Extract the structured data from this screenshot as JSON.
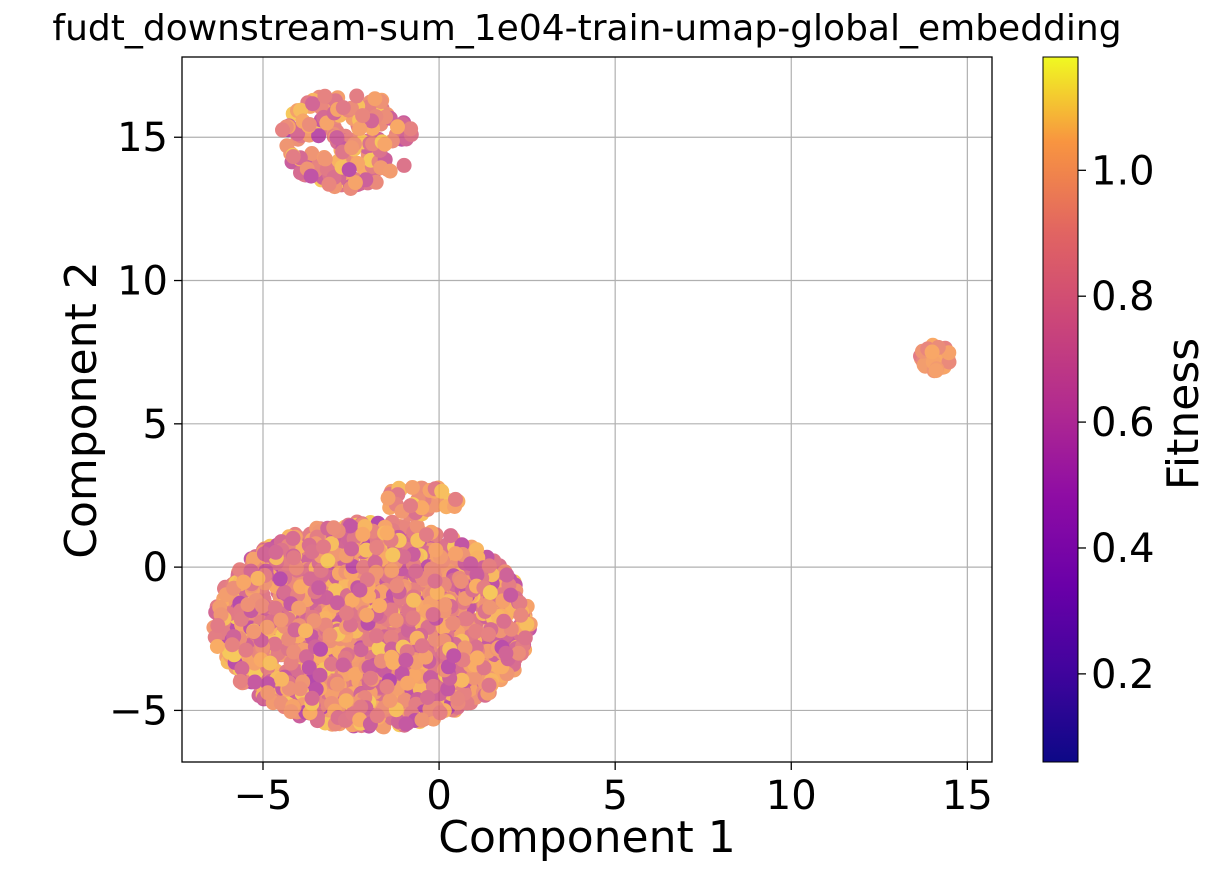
{
  "chart_data": {
    "type": "scatter",
    "title": "fudt_downstream-sum_1e04-train-umap-global_embedding",
    "xlabel": "Component 1",
    "ylabel": "Component 2",
    "xlim": [
      -7.3,
      15.7
    ],
    "ylim": [
      -6.8,
      17.8
    ],
    "xticks": [
      -5,
      0,
      5,
      10,
      15
    ],
    "yticks": [
      -5,
      0,
      5,
      10,
      15
    ],
    "grid": true,
    "colormap": "plasma",
    "colorbar": {
      "label": "Fitness",
      "range": [
        0.06,
        1.18
      ],
      "ticks": [
        0.2,
        0.4,
        0.6,
        0.8,
        1.0
      ]
    },
    "clusters": [
      {
        "name": "upper-left cluster",
        "center": [
          -2.6,
          14.9
        ],
        "extent": [
          1.9,
          1.7
        ],
        "fitness_range": [
          0.55,
          1.1
        ],
        "approx_points": 180
      },
      {
        "name": "main cluster",
        "center": [
          -1.9,
          -2.0
        ],
        "extent": [
          4.5,
          3.6
        ],
        "fitness_range": [
          0.55,
          1.1
        ],
        "approx_points": 2200
      },
      {
        "name": "small bump",
        "center": [
          -0.5,
          2.3
        ],
        "extent": [
          1.1,
          0.6
        ],
        "fitness_range": [
          0.8,
          1.1
        ],
        "approx_points": 40
      },
      {
        "name": "right cluster",
        "center": [
          14.1,
          7.3
        ],
        "extent": [
          0.45,
          0.45
        ],
        "fitness_range": [
          0.85,
          1.05
        ],
        "approx_points": 30
      }
    ],
    "colors": {
      "grid": "#b0b0b0",
      "frame": "#000000"
    }
  }
}
